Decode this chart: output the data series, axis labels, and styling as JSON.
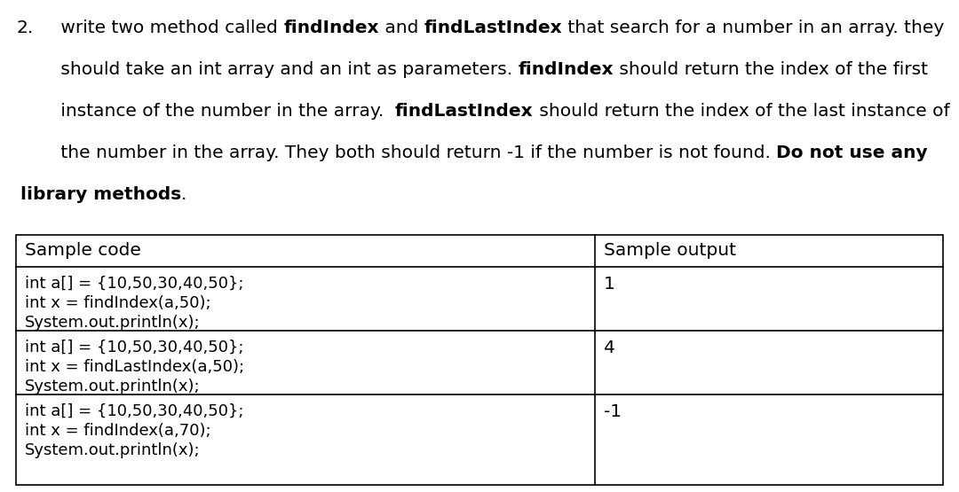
{
  "bg_color": "#ffffff",
  "question_number": "2.",
  "question_lines": [
    [
      {
        "text": " write two method called ",
        "bold": false
      },
      {
        "text": "findIndex",
        "bold": true
      },
      {
        "text": " and ",
        "bold": false
      },
      {
        "text": "findLastIndex",
        "bold": true
      },
      {
        "text": " that search for a number in an array. they",
        "bold": false
      }
    ],
    [
      {
        "text": " should take an int array and an int as parameters. ",
        "bold": false
      },
      {
        "text": "findIndex",
        "bold": true
      },
      {
        "text": " should return the index of the first",
        "bold": false
      }
    ],
    [
      {
        "text": " instance of the number in the array.  ",
        "bold": false
      },
      {
        "text": "findLastIndex",
        "bold": true
      },
      {
        "text": " should return the index of the last instance of",
        "bold": false
      }
    ],
    [
      {
        "text": " the number in the array. They both should return -1 if the number is not found. ",
        "bold": false
      },
      {
        "text": "Do not use any",
        "bold": true
      }
    ],
    [
      {
        "text": "library methods",
        "bold": true
      },
      {
        "text": ".",
        "bold": false
      }
    ]
  ],
  "table_header_left": "Sample code",
  "table_header_right": "Sample output",
  "table_rows": [
    {
      "code": [
        "int a[] = {10,50,30,40,50};",
        "int x = findIndex(a,50);",
        "System.out.println(x);"
      ],
      "output": "1"
    },
    {
      "code": [
        "int a[] = {10,50,30,40,50};",
        "int x = findLastIndex(a,50);",
        "System.out.println(x);"
      ],
      "output": "4"
    },
    {
      "code": [
        "int a[] = {10,50,30,40,50};",
        "int x = findIndex(a,70);",
        "System.out.println(x);"
      ],
      "output": "-1"
    }
  ],
  "font_size_q": 14.5,
  "font_size_table_header": 14.5,
  "font_size_code": 13.0,
  "font_size_output": 14.5
}
